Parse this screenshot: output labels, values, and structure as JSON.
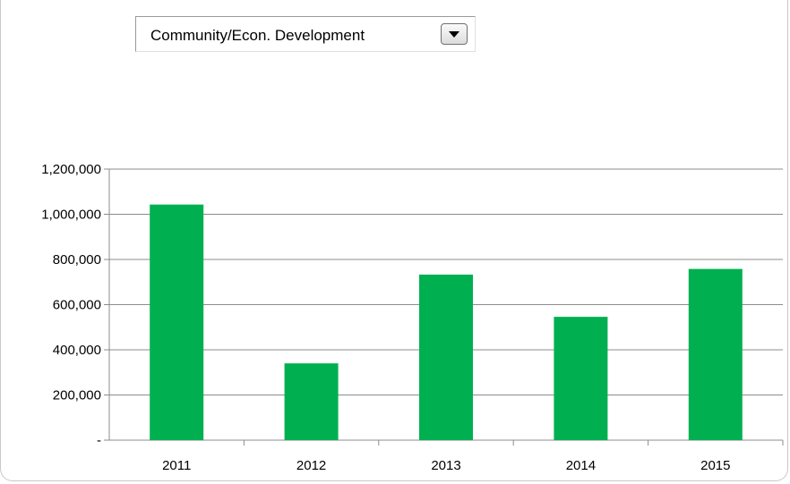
{
  "filter": {
    "selected": "Community/Econ. Development"
  },
  "chart_data": {
    "type": "bar",
    "categories": [
      "2011",
      "2012",
      "2013",
      "2014",
      "2015"
    ],
    "values": [
      1043000,
      340000,
      733000,
      546000,
      758000
    ],
    "ylim": [
      0,
      1200000
    ],
    "yticks": [
      0,
      200000,
      400000,
      600000,
      800000,
      1000000,
      1200000
    ],
    "ytick_labels": [
      "-",
      "200,000",
      "400,000",
      "600,000",
      "800,000",
      "1,000,000",
      "1,200,000"
    ],
    "bar_color": "#00b050",
    "grid": true
  }
}
